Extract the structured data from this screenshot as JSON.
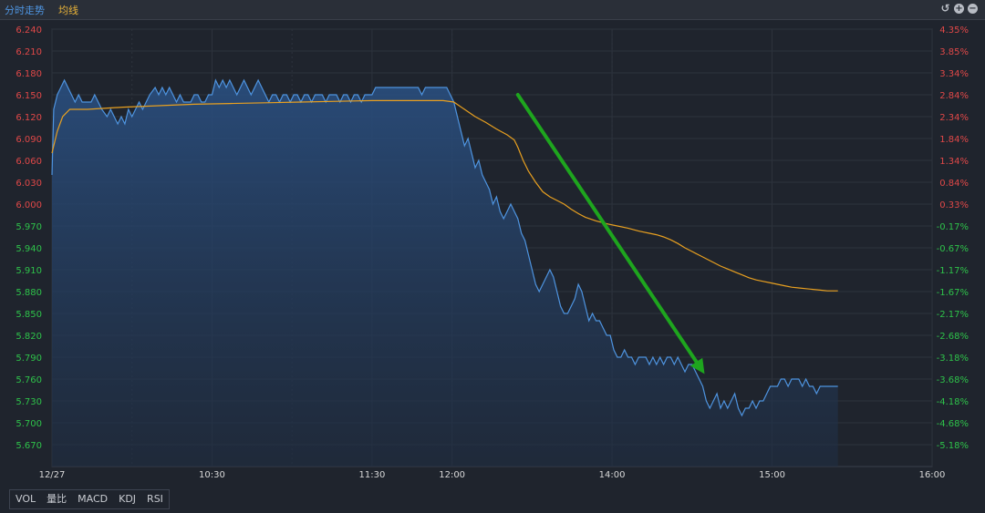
{
  "header": {
    "tab_intraday": "分时走势",
    "tab_ma": "均线",
    "ctrl_restore": "↺",
    "ctrl_add": "+",
    "ctrl_remove": "−"
  },
  "indicators": [
    "VOL",
    "量比",
    "MACD",
    "KDJ",
    "RSI"
  ],
  "colors": {
    "price_line": "#4e94e0",
    "avg_line": "#e8a020",
    "up_label": "#e04848",
    "down_label": "#2ec24a",
    "arrow": "#1ea51e",
    "grid": "#2d333d",
    "axis_text": "#d8d8d8"
  },
  "chart_data": {
    "type": "line",
    "x_ticks": [
      {
        "t": 0,
        "label": "12/27"
      },
      {
        "t": 90,
        "label": "10:30"
      },
      {
        "t": 180,
        "label": "11:30"
      },
      {
        "t": 225,
        "label": "12:00"
      },
      {
        "t": 315,
        "label": "14:00"
      },
      {
        "t": 405,
        "label": "15:00"
      },
      {
        "t": 495,
        "label": "16:00"
      }
    ],
    "xlim": [
      0,
      495
    ],
    "ylim": [
      5.64,
      6.24
    ],
    "y_ticks_left": [
      "6.240",
      "6.210",
      "6.180",
      "6.150",
      "6.120",
      "6.090",
      "6.060",
      "6.030",
      "6.000",
      "5.970",
      "5.940",
      "5.910",
      "5.880",
      "5.850",
      "5.820",
      "5.790",
      "5.760",
      "5.730",
      "5.700",
      "5.670"
    ],
    "y_ticks_right": [
      "4.35%",
      "3.85%",
      "3.34%",
      "2.84%",
      "2.34%",
      "1.84%",
      "1.34%",
      "0.84%",
      "0.33%",
      "-0.17%",
      "-0.67%",
      "-1.17%",
      "-1.67%",
      "-2.17%",
      "-2.68%",
      "-3.18%",
      "-3.68%",
      "-4.18%",
      "-4.68%",
      "-5.18%"
    ],
    "right_up_count": 9,
    "series": [
      {
        "role": "price",
        "points": [
          [
            0,
            6.04
          ],
          [
            1,
            6.13
          ],
          [
            3,
            6.15
          ],
          [
            5,
            6.16
          ],
          [
            7,
            6.17
          ],
          [
            9,
            6.16
          ],
          [
            11,
            6.15
          ],
          [
            13,
            6.14
          ],
          [
            15,
            6.15
          ],
          [
            17,
            6.14
          ],
          [
            19,
            6.14
          ],
          [
            22,
            6.14
          ],
          [
            24,
            6.15
          ],
          [
            26,
            6.14
          ],
          [
            28,
            6.13
          ],
          [
            31,
            6.12
          ],
          [
            33,
            6.13
          ],
          [
            35,
            6.12
          ],
          [
            37,
            6.11
          ],
          [
            39,
            6.12
          ],
          [
            41,
            6.11
          ],
          [
            43,
            6.13
          ],
          [
            45,
            6.12
          ],
          [
            47,
            6.13
          ],
          [
            49,
            6.14
          ],
          [
            51,
            6.13
          ],
          [
            53,
            6.14
          ],
          [
            55,
            6.15
          ],
          [
            58,
            6.16
          ],
          [
            60,
            6.15
          ],
          [
            62,
            6.16
          ],
          [
            64,
            6.15
          ],
          [
            66,
            6.16
          ],
          [
            68,
            6.15
          ],
          [
            70,
            6.14
          ],
          [
            72,
            6.15
          ],
          [
            74,
            6.14
          ],
          [
            76,
            6.14
          ],
          [
            78,
            6.14
          ],
          [
            80,
            6.15
          ],
          [
            82,
            6.15
          ],
          [
            84,
            6.14
          ],
          [
            86,
            6.14
          ],
          [
            88,
            6.15
          ],
          [
            90,
            6.15
          ],
          [
            92,
            6.17
          ],
          [
            94,
            6.16
          ],
          [
            96,
            6.17
          ],
          [
            98,
            6.16
          ],
          [
            100,
            6.17
          ],
          [
            102,
            6.16
          ],
          [
            104,
            6.15
          ],
          [
            106,
            6.16
          ],
          [
            108,
            6.17
          ],
          [
            110,
            6.16
          ],
          [
            112,
            6.15
          ],
          [
            114,
            6.16
          ],
          [
            116,
            6.17
          ],
          [
            118,
            6.16
          ],
          [
            120,
            6.15
          ],
          [
            122,
            6.14
          ],
          [
            124,
            6.15
          ],
          [
            126,
            6.15
          ],
          [
            128,
            6.14
          ],
          [
            130,
            6.15
          ],
          [
            132,
            6.15
          ],
          [
            134,
            6.14
          ],
          [
            136,
            6.15
          ],
          [
            138,
            6.15
          ],
          [
            140,
            6.14
          ],
          [
            142,
            6.15
          ],
          [
            144,
            6.15
          ],
          [
            146,
            6.14
          ],
          [
            148,
            6.15
          ],
          [
            150,
            6.15
          ],
          [
            152,
            6.15
          ],
          [
            154,
            6.14
          ],
          [
            156,
            6.15
          ],
          [
            160,
            6.15
          ],
          [
            162,
            6.14
          ],
          [
            164,
            6.15
          ],
          [
            166,
            6.15
          ],
          [
            168,
            6.14
          ],
          [
            170,
            6.15
          ],
          [
            172,
            6.15
          ],
          [
            174,
            6.14
          ],
          [
            176,
            6.15
          ],
          [
            178,
            6.15
          ],
          [
            180,
            6.15
          ],
          [
            182,
            6.16
          ],
          [
            184,
            6.16
          ],
          [
            186,
            6.16
          ],
          [
            188,
            6.16
          ],
          [
            190,
            6.16
          ],
          [
            192,
            6.16
          ],
          [
            194,
            6.16
          ],
          [
            196,
            6.16
          ],
          [
            198,
            6.16
          ],
          [
            200,
            6.16
          ],
          [
            202,
            6.16
          ],
          [
            204,
            6.16
          ],
          [
            206,
            6.16
          ],
          [
            208,
            6.15
          ],
          [
            210,
            6.16
          ],
          [
            212,
            6.16
          ],
          [
            214,
            6.16
          ],
          [
            216,
            6.16
          ],
          [
            218,
            6.16
          ],
          [
            220,
            6.16
          ],
          [
            222,
            6.16
          ],
          [
            224,
            6.15
          ],
          [
            226,
            6.14
          ],
          [
            228,
            6.12
          ],
          [
            230,
            6.1
          ],
          [
            232,
            6.08
          ],
          [
            234,
            6.09
          ],
          [
            236,
            6.07
          ],
          [
            238,
            6.05
          ],
          [
            240,
            6.06
          ],
          [
            242,
            6.04
          ],
          [
            244,
            6.03
          ],
          [
            246,
            6.02
          ],
          [
            248,
            6.0
          ],
          [
            250,
            6.01
          ],
          [
            252,
            5.99
          ],
          [
            254,
            5.98
          ],
          [
            256,
            5.99
          ],
          [
            258,
            6.0
          ],
          [
            260,
            5.99
          ],
          [
            262,
            5.98
          ],
          [
            264,
            5.96
          ],
          [
            266,
            5.95
          ],
          [
            268,
            5.93
          ],
          [
            270,
            5.91
          ],
          [
            272,
            5.89
          ],
          [
            274,
            5.88
          ],
          [
            276,
            5.89
          ],
          [
            278,
            5.9
          ],
          [
            280,
            5.91
          ],
          [
            282,
            5.9
          ],
          [
            284,
            5.88
          ],
          [
            286,
            5.86
          ],
          [
            288,
            5.85
          ],
          [
            290,
            5.85
          ],
          [
            292,
            5.86
          ],
          [
            294,
            5.87
          ],
          [
            296,
            5.89
          ],
          [
            298,
            5.88
          ],
          [
            300,
            5.86
          ],
          [
            302,
            5.84
          ],
          [
            304,
            5.85
          ],
          [
            306,
            5.84
          ],
          [
            308,
            5.84
          ],
          [
            310,
            5.83
          ],
          [
            312,
            5.82
          ],
          [
            314,
            5.82
          ],
          [
            316,
            5.8
          ],
          [
            318,
            5.79
          ],
          [
            320,
            5.79
          ],
          [
            322,
            5.8
          ],
          [
            324,
            5.79
          ],
          [
            326,
            5.79
          ],
          [
            328,
            5.78
          ],
          [
            330,
            5.79
          ],
          [
            332,
            5.79
          ],
          [
            334,
            5.79
          ],
          [
            336,
            5.78
          ],
          [
            338,
            5.79
          ],
          [
            340,
            5.78
          ],
          [
            342,
            5.79
          ],
          [
            344,
            5.78
          ],
          [
            346,
            5.79
          ],
          [
            348,
            5.79
          ],
          [
            350,
            5.78
          ],
          [
            352,
            5.79
          ],
          [
            354,
            5.78
          ],
          [
            356,
            5.77
          ],
          [
            358,
            5.78
          ],
          [
            360,
            5.78
          ],
          [
            362,
            5.77
          ],
          [
            364,
            5.76
          ],
          [
            366,
            5.75
          ],
          [
            368,
            5.73
          ],
          [
            370,
            5.72
          ],
          [
            372,
            5.73
          ],
          [
            374,
            5.74
          ],
          [
            376,
            5.72
          ],
          [
            378,
            5.73
          ],
          [
            380,
            5.72
          ],
          [
            382,
            5.73
          ],
          [
            384,
            5.74
          ],
          [
            386,
            5.72
          ],
          [
            388,
            5.71
          ],
          [
            390,
            5.72
          ],
          [
            392,
            5.72
          ],
          [
            394,
            5.73
          ],
          [
            396,
            5.72
          ],
          [
            398,
            5.73
          ],
          [
            400,
            5.73
          ],
          [
            402,
            5.74
          ],
          [
            404,
            5.75
          ],
          [
            406,
            5.75
          ],
          [
            408,
            5.75
          ],
          [
            410,
            5.76
          ],
          [
            412,
            5.76
          ],
          [
            414,
            5.75
          ],
          [
            416,
            5.76
          ],
          [
            418,
            5.76
          ],
          [
            420,
            5.76
          ],
          [
            422,
            5.75
          ],
          [
            424,
            5.76
          ],
          [
            426,
            5.75
          ],
          [
            428,
            5.75
          ],
          [
            430,
            5.74
          ],
          [
            432,
            5.75
          ],
          [
            434,
            5.75
          ],
          [
            436,
            5.75
          ],
          [
            438,
            5.75
          ],
          [
            440,
            5.75
          ],
          [
            442,
            5.75
          ]
        ]
      },
      {
        "role": "average",
        "points": [
          [
            0,
            6.07
          ],
          [
            3,
            6.1
          ],
          [
            6,
            6.12
          ],
          [
            10,
            6.13
          ],
          [
            20,
            6.13
          ],
          [
            40,
            6.133
          ],
          [
            60,
            6.135
          ],
          [
            80,
            6.137
          ],
          [
            100,
            6.138
          ],
          [
            120,
            6.139
          ],
          [
            140,
            6.14
          ],
          [
            160,
            6.141
          ],
          [
            180,
            6.142
          ],
          [
            200,
            6.142
          ],
          [
            220,
            6.142
          ],
          [
            226,
            6.14
          ],
          [
            232,
            6.13
          ],
          [
            238,
            6.12
          ],
          [
            244,
            6.112
          ],
          [
            250,
            6.103
          ],
          [
            256,
            6.095
          ],
          [
            260,
            6.088
          ],
          [
            262,
            6.078
          ],
          [
            265,
            6.06
          ],
          [
            268,
            6.045
          ],
          [
            272,
            6.03
          ],
          [
            276,
            6.017
          ],
          [
            280,
            6.01
          ],
          [
            284,
            6.005
          ],
          [
            288,
            6.0
          ],
          [
            292,
            5.993
          ],
          [
            296,
            5.987
          ],
          [
            300,
            5.982
          ],
          [
            306,
            5.977
          ],
          [
            312,
            5.973
          ],
          [
            318,
            5.97
          ],
          [
            324,
            5.967
          ],
          [
            330,
            5.963
          ],
          [
            336,
            5.96
          ],
          [
            340,
            5.958
          ],
          [
            344,
            5.955
          ],
          [
            348,
            5.951
          ],
          [
            352,
            5.946
          ],
          [
            356,
            5.94
          ],
          [
            360,
            5.935
          ],
          [
            364,
            5.93
          ],
          [
            368,
            5.925
          ],
          [
            372,
            5.92
          ],
          [
            376,
            5.915
          ],
          [
            380,
            5.911
          ],
          [
            384,
            5.907
          ],
          [
            388,
            5.903
          ],
          [
            392,
            5.899
          ],
          [
            396,
            5.896
          ],
          [
            400,
            5.894
          ],
          [
            404,
            5.892
          ],
          [
            408,
            5.89
          ],
          [
            412,
            5.888
          ],
          [
            416,
            5.886
          ],
          [
            420,
            5.885
          ],
          [
            424,
            5.884
          ],
          [
            428,
            5.883
          ],
          [
            432,
            5.882
          ],
          [
            436,
            5.881
          ],
          [
            442,
            5.881
          ]
        ]
      }
    ],
    "annotations": [
      {
        "type": "arrow",
        "from": [
          262,
          6.15
        ],
        "to": [
          367,
          5.767
        ]
      }
    ]
  }
}
